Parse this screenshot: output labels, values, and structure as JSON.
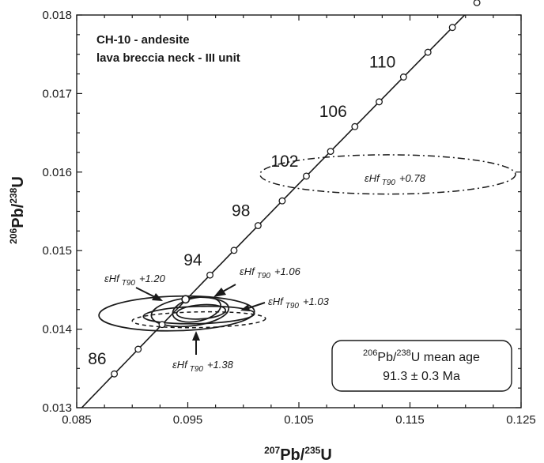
{
  "chart_data": {
    "type": "scatter",
    "subtype": "U-Pb concordia diagram",
    "title": [
      "CH-10 - andesite",
      "lava breccia neck - III unit"
    ],
    "xlabel": {
      "sup": "207",
      "base": "Pb/",
      "sup2": "235",
      "end": "U"
    },
    "ylabel": {
      "sup": "206",
      "base": "Pb/",
      "sup2": "238",
      "end": "U"
    },
    "xlim": [
      0.085,
      0.125
    ],
    "ylim": [
      0.013,
      0.018
    ],
    "x_ticks": [
      0.085,
      0.095,
      0.105,
      0.115,
      0.125
    ],
    "y_ticks": [
      0.013,
      0.014,
      0.015,
      0.016,
      0.017,
      0.018
    ],
    "x_tick_labels": [
      "0.085",
      "0.095",
      "0.105",
      "0.115",
      "0.125"
    ],
    "y_tick_labels": [
      "0.013",
      "0.014",
      "0.015",
      "0.016",
      "0.017",
      "0.018"
    ],
    "grid": false,
    "concordia": {
      "age_marks_ma": [
        86,
        88,
        90,
        92,
        94,
        96,
        98,
        100,
        102,
        104,
        106,
        108,
        110,
        112,
        114,
        116
      ],
      "age_labels_ma": [
        86,
        94,
        98,
        102,
        106,
        110
      ],
      "age_label_text": [
        "86",
        "94",
        "98",
        "102",
        "106",
        "110"
      ]
    },
    "ellipses": [
      {
        "cx": 0.094,
        "cy": 0.0142,
        "rx": 0.007,
        "ry": 0.00022,
        "angle_deg": 1.5,
        "style": "solid"
      },
      {
        "cx": 0.0952,
        "cy": 0.01422,
        "rx": 0.0035,
        "ry": 0.00018,
        "angle_deg": 6,
        "style": "solid"
      },
      {
        "cx": 0.0958,
        "cy": 0.01425,
        "rx": 0.0022,
        "ry": 0.00015,
        "angle_deg": 12,
        "style": "solid"
      },
      {
        "cx": 0.0962,
        "cy": 0.01422,
        "rx": 0.0022,
        "ry": 9e-05,
        "angle_deg": 4,
        "style": "solid"
      },
      {
        "cx": 0.096,
        "cy": 0.01418,
        "rx": 0.005,
        "ry": 0.00011,
        "angle_deg": 1.5,
        "style": "solid"
      },
      {
        "cx": 0.096,
        "cy": 0.01412,
        "rx": 0.006,
        "ry": 0.0001,
        "angle_deg": 1,
        "style": "dashed"
      },
      {
        "cx": 0.113,
        "cy": 0.01597,
        "rx": 0.0115,
        "ry": 0.00025,
        "angle_deg": 0,
        "style": "dashdot"
      }
    ],
    "mean_age_point": {
      "x": 0.0948,
      "y": 0.01438
    },
    "annotations": [
      {
        "label": "εHf",
        "sub": "T90",
        "value": "+0.78"
      },
      {
        "label": "εHf",
        "sub": "T90",
        "value": "+1.06"
      },
      {
        "label": "εHf",
        "sub": "T90",
        "value": "+1.20"
      },
      {
        "label": "εHf",
        "sub": "T90",
        "value": "+1.03"
      },
      {
        "label": "εHf",
        "sub": "T90",
        "value": "+1.38"
      }
    ],
    "result_box": {
      "sup": "206",
      "line1_rest": "Pb/",
      "sup2": "238",
      "line1_end": "U mean age",
      "line2": "91.3 ± 0.3 Ma"
    }
  }
}
